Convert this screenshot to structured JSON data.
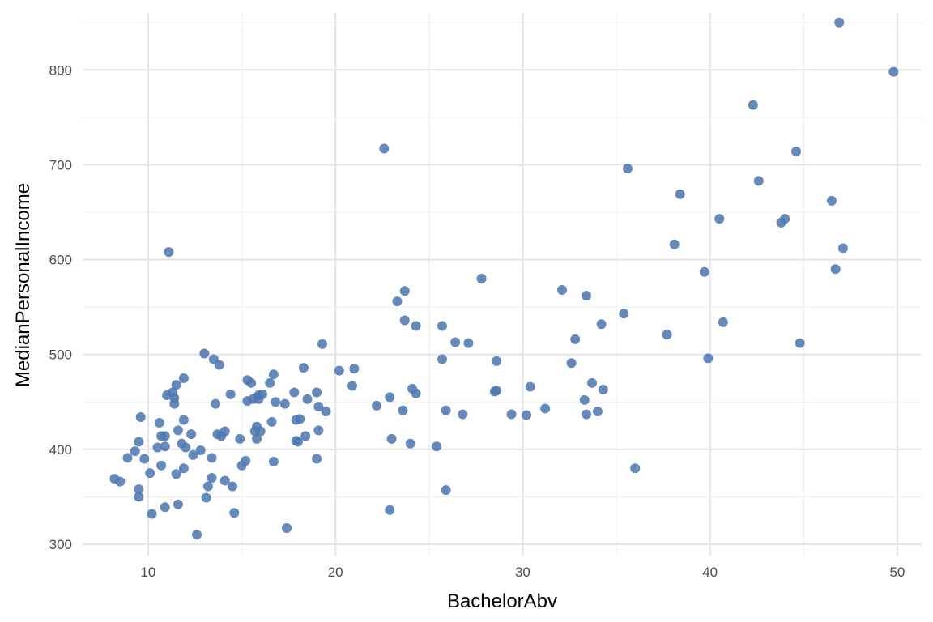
{
  "chart_data": {
    "type": "scatter",
    "xlabel": "BachelorAbv",
    "ylabel": "MedianPersonalIncome",
    "xlim": [
      6.5,
      51.3
    ],
    "ylim": [
      288,
      860
    ],
    "x_ticks": [
      10,
      20,
      30,
      40,
      50
    ],
    "x_tick_labels": [
      "10",
      "20",
      "30",
      "40",
      "50"
    ],
    "y_ticks": [
      300,
      400,
      500,
      600,
      700,
      800
    ],
    "y_tick_labels": [
      "300",
      "400",
      "500",
      "600",
      "700",
      "800"
    ],
    "grid": true,
    "legend": "none",
    "point_color": "#4e79b0",
    "points": [
      [
        8.2,
        369
      ],
      [
        8.5,
        366
      ],
      [
        8.9,
        391
      ],
      [
        9.3,
        398
      ],
      [
        9.5,
        408
      ],
      [
        9.5,
        358
      ],
      [
        9.5,
        350
      ],
      [
        9.6,
        434
      ],
      [
        9.8,
        390
      ],
      [
        10.1,
        375
      ],
      [
        10.2,
        332
      ],
      [
        10.5,
        402
      ],
      [
        10.6,
        428
      ],
      [
        10.7,
        383
      ],
      [
        10.7,
        414
      ],
      [
        10.9,
        414
      ],
      [
        10.9,
        339
      ],
      [
        10.9,
        403
      ],
      [
        11.0,
        457
      ],
      [
        11.1,
        608
      ],
      [
        11.3,
        460
      ],
      [
        11.4,
        448
      ],
      [
        11.4,
        454
      ],
      [
        11.5,
        468
      ],
      [
        11.5,
        374
      ],
      [
        11.6,
        342
      ],
      [
        11.6,
        420
      ],
      [
        11.8,
        406
      ],
      [
        11.9,
        475
      ],
      [
        11.9,
        431
      ],
      [
        11.9,
        380
      ],
      [
        12.0,
        402
      ],
      [
        12.3,
        416
      ],
      [
        12.4,
        394
      ],
      [
        12.6,
        310
      ],
      [
        12.8,
        399
      ],
      [
        13.0,
        501
      ],
      [
        13.1,
        349
      ],
      [
        13.2,
        361
      ],
      [
        13.4,
        391
      ],
      [
        13.4,
        370
      ],
      [
        13.5,
        495
      ],
      [
        13.6,
        448
      ],
      [
        13.7,
        416
      ],
      [
        13.8,
        489
      ],
      [
        13.9,
        414
      ],
      [
        14.1,
        367
      ],
      [
        14.1,
        419
      ],
      [
        14.4,
        458
      ],
      [
        14.5,
        361
      ],
      [
        14.6,
        333
      ],
      [
        14.9,
        411
      ],
      [
        15.0,
        383
      ],
      [
        15.2,
        388
      ],
      [
        15.3,
        451
      ],
      [
        15.3,
        473
      ],
      [
        15.5,
        470
      ],
      [
        15.6,
        453
      ],
      [
        15.7,
        419
      ],
      [
        15.8,
        411
      ],
      [
        15.8,
        424
      ],
      [
        15.9,
        457
      ],
      [
        15.9,
        453
      ],
      [
        16.0,
        419
      ],
      [
        16.1,
        458
      ],
      [
        16.5,
        470
      ],
      [
        16.6,
        429
      ],
      [
        16.7,
        387
      ],
      [
        16.7,
        479
      ],
      [
        16.8,
        450
      ],
      [
        17.3,
        448
      ],
      [
        17.4,
        317
      ],
      [
        17.8,
        460
      ],
      [
        17.9,
        431
      ],
      [
        17.9,
        409
      ],
      [
        18.0,
        408
      ],
      [
        18.1,
        432
      ],
      [
        18.3,
        486
      ],
      [
        18.4,
        414
      ],
      [
        18.5,
        453
      ],
      [
        19.0,
        390
      ],
      [
        19.0,
        460
      ],
      [
        19.1,
        445
      ],
      [
        19.1,
        420
      ],
      [
        19.3,
        511
      ],
      [
        19.5,
        440
      ],
      [
        20.2,
        483
      ],
      [
        20.9,
        467
      ],
      [
        21.0,
        485
      ],
      [
        22.2,
        446
      ],
      [
        22.6,
        717
      ],
      [
        22.9,
        455
      ],
      [
        22.9,
        336
      ],
      [
        23.0,
        411
      ],
      [
        23.3,
        556
      ],
      [
        23.6,
        441
      ],
      [
        23.7,
        567
      ],
      [
        23.7,
        536
      ],
      [
        24.0,
        406
      ],
      [
        24.1,
        464
      ],
      [
        24.3,
        530
      ],
      [
        24.3,
        459
      ],
      [
        25.4,
        403
      ],
      [
        25.7,
        530
      ],
      [
        25.7,
        495
      ],
      [
        25.9,
        441
      ],
      [
        25.9,
        357
      ],
      [
        26.4,
        513
      ],
      [
        26.8,
        437
      ],
      [
        27.1,
        512
      ],
      [
        27.8,
        580
      ],
      [
        28.5,
        461
      ],
      [
        28.6,
        493
      ],
      [
        28.6,
        462
      ],
      [
        29.4,
        437
      ],
      [
        30.2,
        436
      ],
      [
        30.4,
        466
      ],
      [
        31.2,
        443
      ],
      [
        32.1,
        568
      ],
      [
        32.6,
        491
      ],
      [
        32.8,
        516
      ],
      [
        33.3,
        452
      ],
      [
        33.4,
        562
      ],
      [
        33.4,
        437
      ],
      [
        33.7,
        470
      ],
      [
        34.0,
        440
      ],
      [
        34.2,
        532
      ],
      [
        34.3,
        463
      ],
      [
        35.4,
        543
      ],
      [
        35.6,
        696
      ],
      [
        36.0,
        380
      ],
      [
        37.7,
        521
      ],
      [
        38.1,
        616
      ],
      [
        38.4,
        669
      ],
      [
        39.7,
        587
      ],
      [
        39.9,
        496
      ],
      [
        40.5,
        643
      ],
      [
        40.7,
        534
      ],
      [
        42.3,
        763
      ],
      [
        42.6,
        683
      ],
      [
        43.8,
        639
      ],
      [
        44.0,
        643
      ],
      [
        44.6,
        714
      ],
      [
        44.8,
        512
      ],
      [
        46.5,
        662
      ],
      [
        46.7,
        590
      ],
      [
        46.9,
        850
      ],
      [
        47.1,
        612
      ],
      [
        49.8,
        798
      ]
    ]
  }
}
